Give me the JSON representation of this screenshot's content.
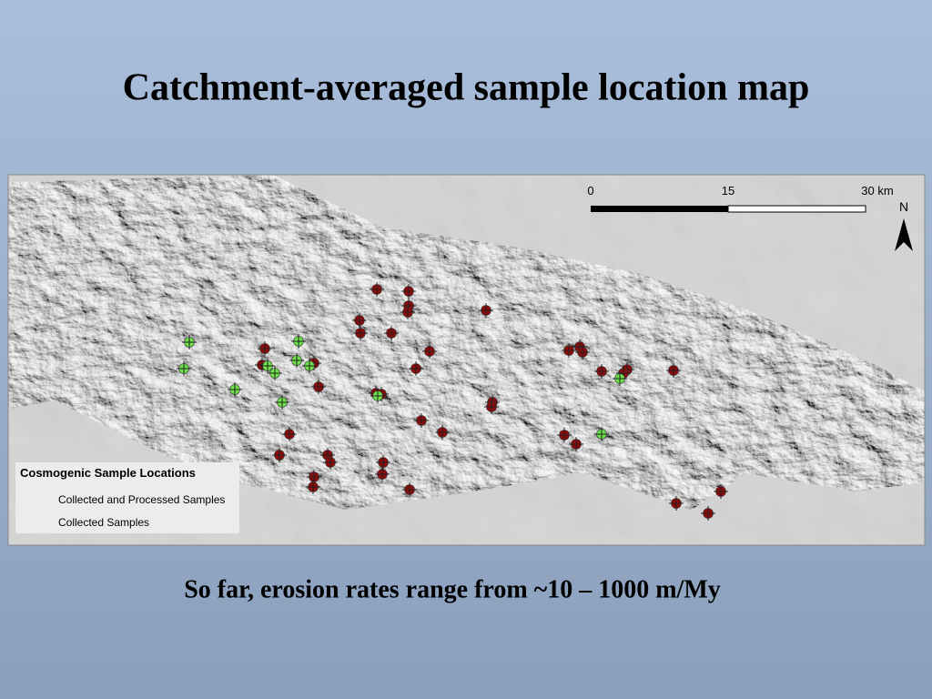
{
  "slide": {
    "title": "Catchment-averaged sample location map",
    "caption": "So far, erosion rates range from ~10 – 1000 m/My",
    "map": {
      "scale_labels": [
        "0",
        "15",
        "30 km"
      ],
      "north": "N",
      "legend": {
        "title": "Cosmogenic Sample Locations",
        "items": [
          "Collected and Processed Samples",
          "Collected Samples"
        ]
      }
    }
  }
}
